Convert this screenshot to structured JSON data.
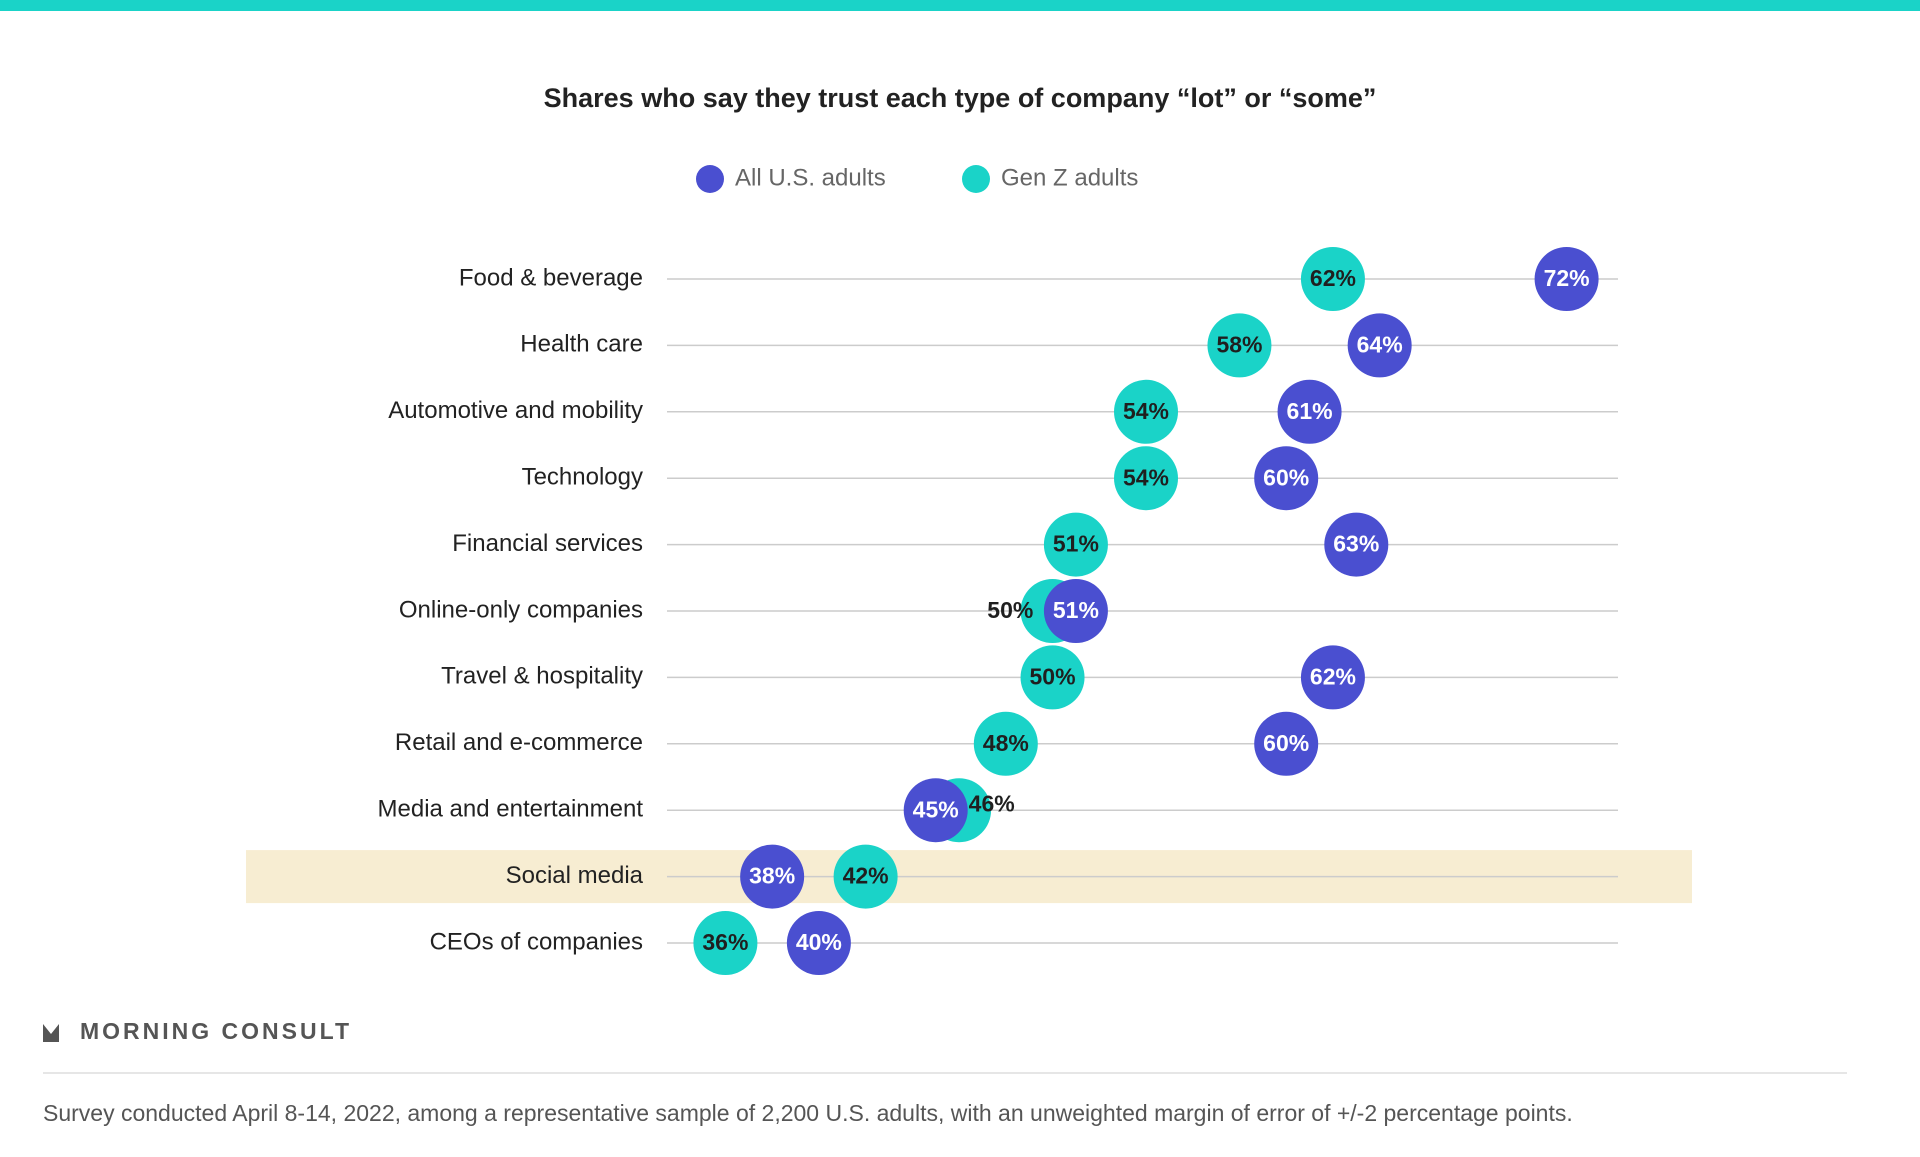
{
  "chart_data": {
    "type": "dot",
    "title": "Shares who say they trust each type of company “lot” or “some”",
    "categories": [
      "Food & beverage",
      "Health care",
      "Automotive and mobility",
      "Technology",
      "Financial services",
      "Online-only companies",
      "Travel & hospitality",
      "Retail and e-commerce",
      "Media and entertainment",
      "Social media",
      "CEOs of companies"
    ],
    "series": [
      {
        "name": "All U.S. adults",
        "color": "#4a4fd0",
        "label_color": "#ffffff",
        "values": [
          72,
          64,
          61,
          60,
          63,
          51,
          62,
          60,
          45,
          38,
          40
        ],
        "value_labels": [
          "72%",
          "64%",
          "61%",
          "60%",
          "63%",
          "51%",
          "62%",
          "60%",
          "45%",
          "38%",
          "40%"
        ]
      },
      {
        "name": "Gen Z adults",
        "color": "#1ad3c8",
        "label_color": "#1f1f1f",
        "values": [
          62,
          58,
          54,
          54,
          51,
          50,
          50,
          48,
          46,
          42,
          36
        ],
        "value_labels": [
          "62%",
          "58%",
          "54%",
          "54%",
          "51%",
          "50%",
          "50%",
          "48%",
          "46%",
          "42%",
          "36%"
        ]
      }
    ],
    "xlim": [
      33.5,
      74.2
    ],
    "highlight": 9,
    "highlight_color": "#f7edd2",
    "source": "MORNING CONSULT",
    "footnote": "Survey conducted April 8-14, 2022, among a representative sample of 2,200 U.S. adults, with an unweighted margin of error of +/-2 percentage points."
  }
}
